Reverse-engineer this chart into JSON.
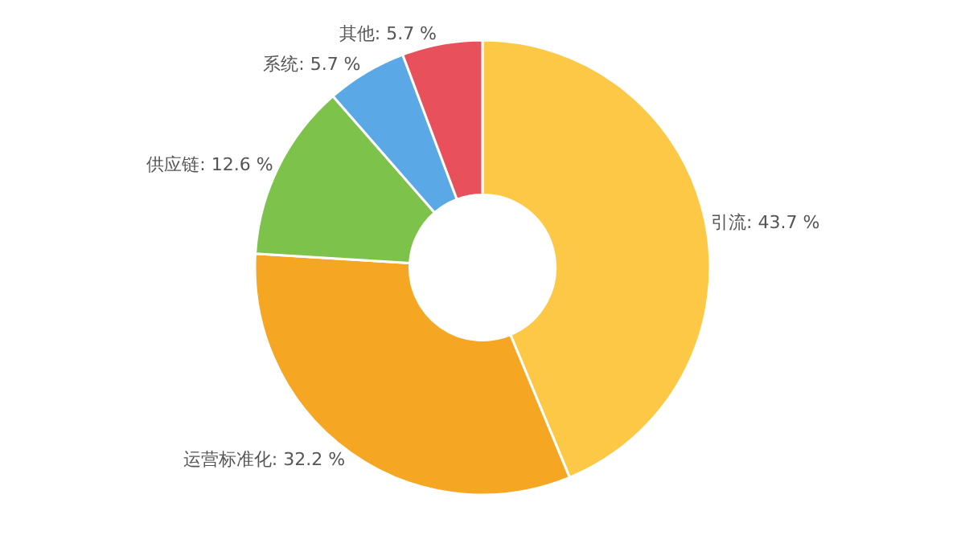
{
  "chart_data": {
    "type": "donut",
    "categories": [
      "引流",
      "运营标准化",
      "供应链",
      "系统",
      "其他"
    ],
    "values": [
      43.7,
      32.2,
      12.6,
      5.7,
      5.7
    ],
    "value_labels": [
      "43.7 %",
      "32.2 %",
      "12.6 %",
      "5.7 %",
      "5.7 %"
    ],
    "colors": [
      "#fcc845",
      "#f5a623",
      "#7dc24b",
      "#5aa9e6",
      "#e8505b"
    ],
    "legend": false
  }
}
